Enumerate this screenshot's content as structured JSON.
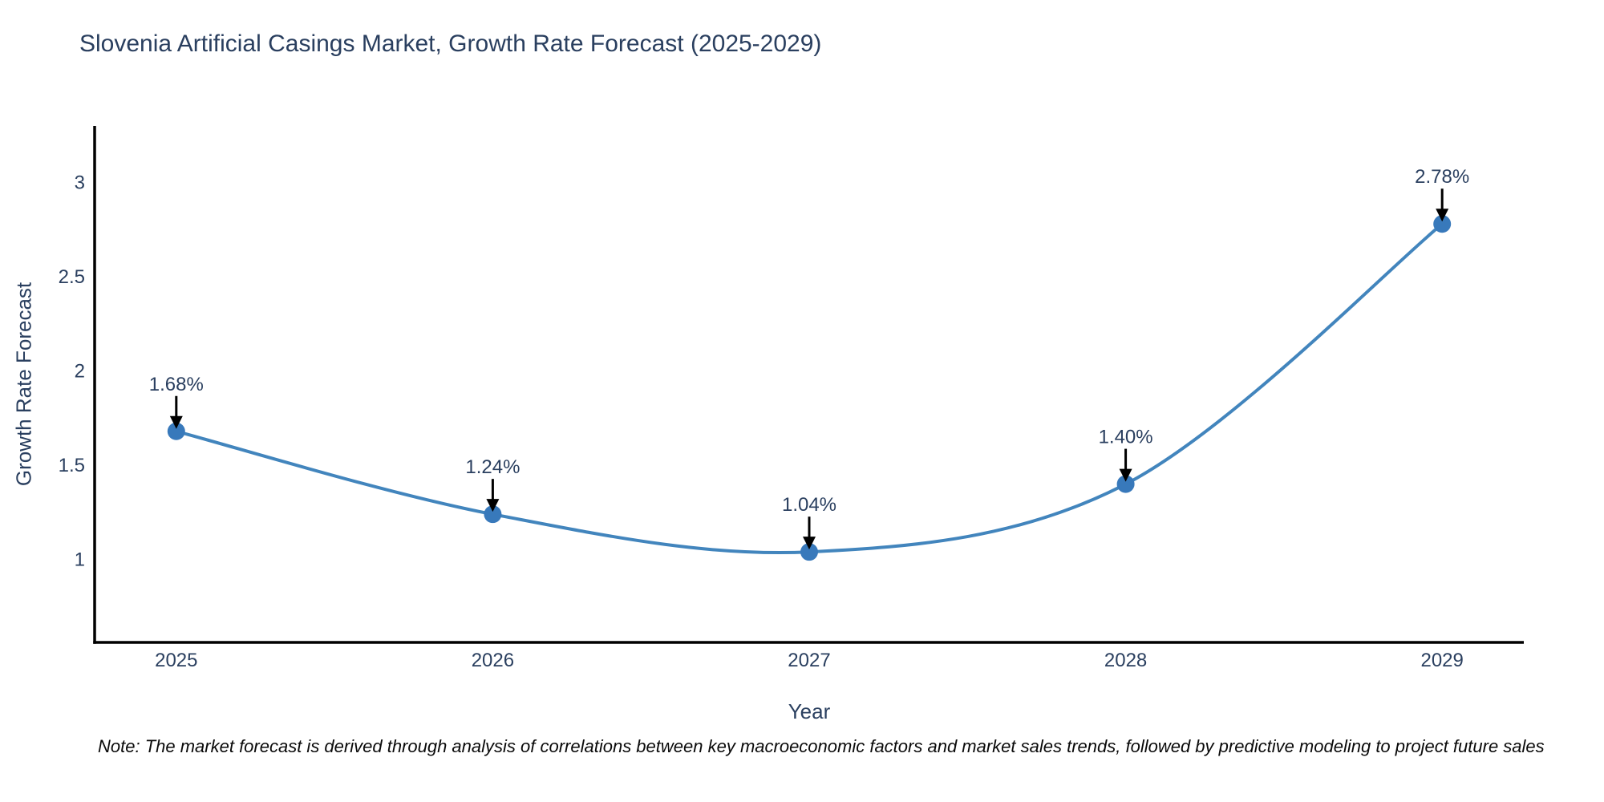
{
  "title": "Slovenia Artificial Casings Market, Growth Rate Forecast (2025-2029)",
  "note": "Note: The market forecast is derived through analysis of correlations between key macroeconomic factors and market sales trends, followed by predictive modeling to project future sales",
  "chart_data": {
    "type": "line",
    "title": "Slovenia Artificial Casings Market, Growth Rate Forecast (2025-2029)",
    "xlabel": "Year",
    "ylabel": "Growth Rate Forecast",
    "x": [
      2025,
      2026,
      2027,
      2028,
      2029
    ],
    "y": [
      1.68,
      1.24,
      1.04,
      1.4,
      2.78
    ],
    "point_labels": [
      "1.68%",
      "1.24%",
      "1.04%",
      "1.40%",
      "2.78%"
    ],
    "xtick_values": [
      2025,
      2026,
      2027,
      2028,
      2029
    ],
    "xtick_labels": [
      "2025",
      "2026",
      "2027",
      "2028",
      "2029"
    ],
    "ytick_values": [
      1,
      1.5,
      2,
      2.5,
      3
    ],
    "ytick_labels": [
      "1",
      "1.5",
      "2",
      "2.5",
      "3"
    ],
    "xlim": [
      2024.742,
      2029.258
    ],
    "ylim": [
      0.56,
      3.3
    ],
    "line_shape": "spline",
    "grid": false,
    "legend": "none",
    "colors": {
      "line": "#4285bd",
      "marker": "#3879bb",
      "axis": "#000000",
      "tick_text": "#2a3f5f",
      "annotation_text": "#2a3f5f",
      "arrow": "#000000",
      "title_text": "#2a3f5f",
      "background": "#ffffff"
    }
  }
}
